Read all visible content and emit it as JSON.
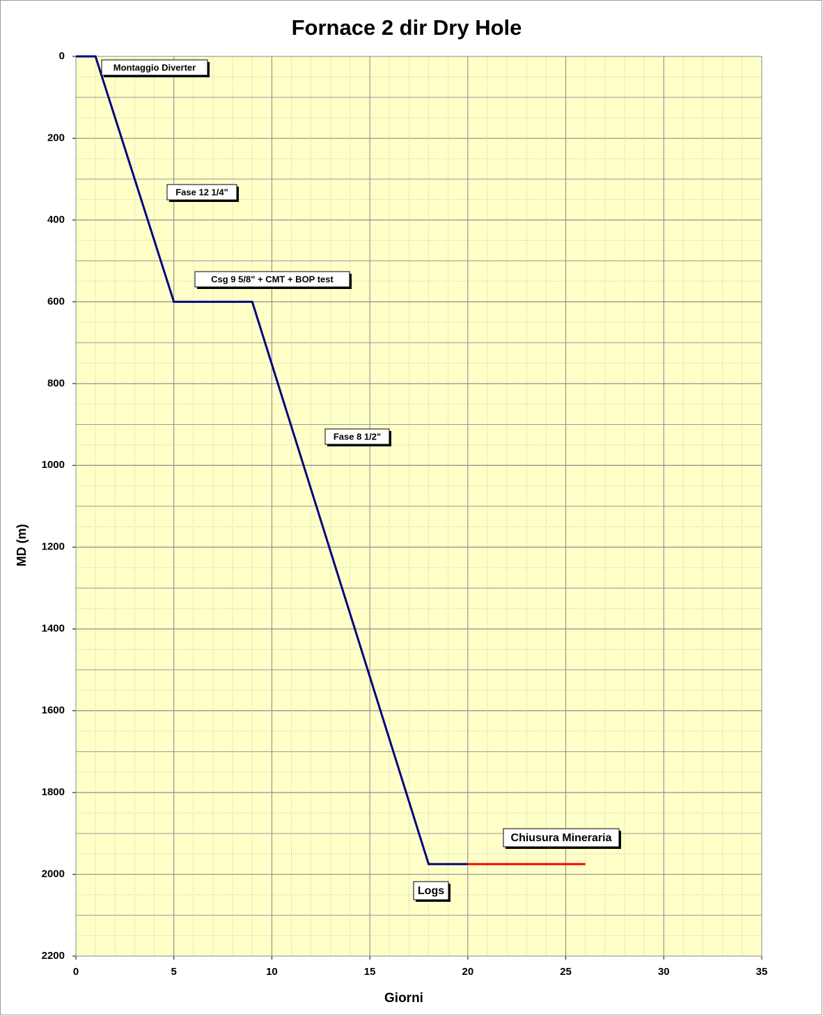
{
  "chart_data": {
    "type": "line",
    "title": "Fornace 2 dir Dry Hole",
    "x_label": "Giorni",
    "y_label": "MD (m)",
    "series": [
      {
        "color": "#000080",
        "x": [
          0,
          1,
          5,
          9,
          18,
          20
        ],
        "values": [
          0,
          0,
          600,
          600,
          1975,
          1975
        ]
      },
      {
        "color": "#ff0000",
        "x": [
          20,
          26
        ],
        "values": [
          1975,
          1975
        ]
      }
    ],
    "xlim": [
      0,
      35
    ],
    "xticks": [
      0,
      5,
      10,
      15,
      20,
      25,
      30,
      35
    ],
    "ylim": [
      0,
      2200
    ],
    "yticks": [
      0,
      200,
      400,
      600,
      800,
      1000,
      1200,
      1400,
      1600,
      1800,
      2000,
      2200
    ],
    "y_inverted": true,
    "grid": true,
    "minor_grid": {
      "x": 1,
      "y": 50,
      "y_major": 100
    },
    "background": "#ffffc8",
    "annotations": [
      "Montaggio Diverter",
      "Fase 12 1/4\"",
      "Csg  9 5/8\" + CMT + BOP test",
      "Fase 8 1/2\"",
      "Chiusura Mineraria",
      "Logs"
    ]
  }
}
